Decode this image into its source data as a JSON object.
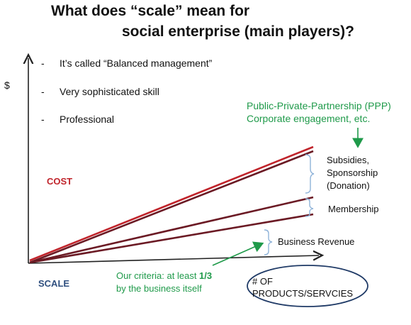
{
  "title": {
    "line1": "What does “scale” mean for",
    "line2": "social enterprise (main players)?"
  },
  "y_axis_label": "$",
  "bullets": [
    {
      "dash": "-",
      "text": "It’s called “Balanced management”"
    },
    {
      "dash": "-",
      "text": "Very sophisticated skill"
    },
    {
      "dash": "-",
      "text": "Professional"
    }
  ],
  "ppp_note": {
    "line1": "Public-Private-Partnership (PPP)",
    "line2": "Corporate engagement, etc."
  },
  "cost_label": "COST",
  "scale_label": "SCALE",
  "segments": {
    "subsidies": [
      "Subsidies,",
      "Sponsorship",
      "(Donation)"
    ],
    "membership": "Membership",
    "business_revenue": "Business Revenue"
  },
  "criteria_note": {
    "line1_prefix": "Our criteria: at least ",
    "line1_emphasis": "1/3",
    "line2": "by the business itself"
  },
  "x_axis_label": {
    "line1": "# OF",
    "line2": "PRODUCTS/SERVCIES"
  },
  "colors": {
    "cost_line": "#c0242b",
    "revenue_lines": "#6b1a24",
    "axis": "#222222",
    "brace": "#8fb3d9",
    "green_note": "#1f9a4a",
    "scale_label": "#2f4f7f",
    "ellipse": "#1f3a66"
  }
}
